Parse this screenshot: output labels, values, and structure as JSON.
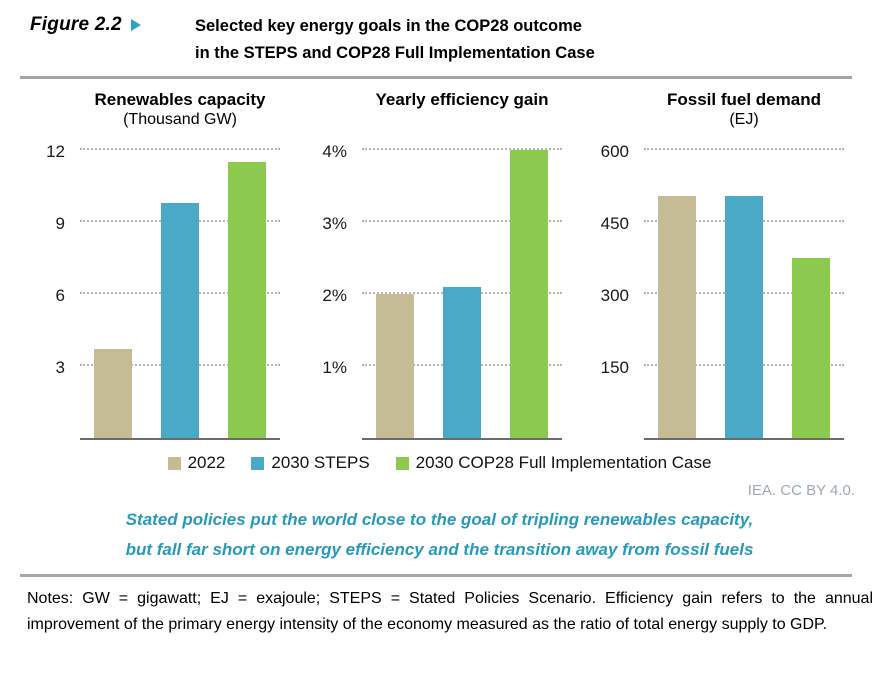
{
  "figure_header": {
    "label": "Figure 2.2",
    "arrow_icon": "right-triangle",
    "title_line1": "Selected key energy goals in the COP28 outcome",
    "title_line2": "in the STEPS and COP28 Full Implementation Case"
  },
  "chart_data": [
    {
      "type": "bar",
      "title": "Renewables capacity",
      "subtitle": "(Thousand GW)",
      "unit": "Thousand GW",
      "categories": [
        "2022",
        "2030 STEPS",
        "2030 COP28 Full Implementation Case"
      ],
      "values": [
        3.7,
        9.8,
        11.5
      ],
      "ytick_labels": [
        "3",
        "6",
        "9",
        "12"
      ],
      "ytick_step": 3,
      "ylim": [
        0,
        12.75
      ],
      "grid": "horizontal-dotted",
      "legend_position": "bottom-shared"
    },
    {
      "type": "bar",
      "title": "Yearly efficiency gain",
      "subtitle": "",
      "unit": "%",
      "categories": [
        "2022",
        "2030 STEPS",
        "2030 COP28 Full Implementation Case"
      ],
      "values": [
        2.0,
        2.1,
        4.0
      ],
      "ytick_labels": [
        "1%",
        "2%",
        "3%",
        "4%"
      ],
      "ytick_step": 1,
      "ylim": [
        0,
        4.25
      ],
      "grid": "horizontal-dotted",
      "legend_position": "bottom-shared"
    },
    {
      "type": "bar",
      "title": "Fossil fuel demand",
      "subtitle": "(EJ)",
      "unit": "EJ",
      "categories": [
        "2022",
        "2030 STEPS",
        "2030 COP28 Full Implementation Case"
      ],
      "values": [
        505,
        505,
        375
      ],
      "ytick_labels": [
        "150",
        "300",
        "450",
        "600"
      ],
      "ytick_step": 150,
      "ylim": [
        0,
        637.5
      ],
      "grid": "horizontal-dotted",
      "legend_position": "bottom-shared"
    }
  ],
  "legend": {
    "items": [
      {
        "label": "2022",
        "color": "#C5BC96"
      },
      {
        "label": "2030 STEPS",
        "color": "#4AA9C6"
      },
      {
        "label": "2030 COP28 Full Implementation Case",
        "color": "#8CC94F"
      }
    ]
  },
  "attribution": "IEA. CC BY 4.0.",
  "caption": {
    "line1": "Stated policies put the world close to the goal of tripling renewables capacity,",
    "line2": "but fall far short on energy efficiency and the transition away from fossil fuels"
  },
  "notes": "Notes: GW = gigawatt; EJ = exajoule; STEPS = Stated Policies Scenario. Efficiency gain refers to the annual improvement of the primary energy intensity of the economy measured as the ratio of total energy supply to GDP.",
  "colors": {
    "bar_2022": "#C5BC96",
    "bar_2030_steps": "#4AA9C6",
    "bar_2030_cop28": "#8CC94F",
    "caption_teal": "#2799BB",
    "arrow_teal": "#2BA3C4",
    "attribution_gray": "#9FA8B0",
    "divider_gray": "#A6A6A6",
    "axis_gray": "#6B6B6B",
    "gridline_gray": "#B3B3B3"
  }
}
